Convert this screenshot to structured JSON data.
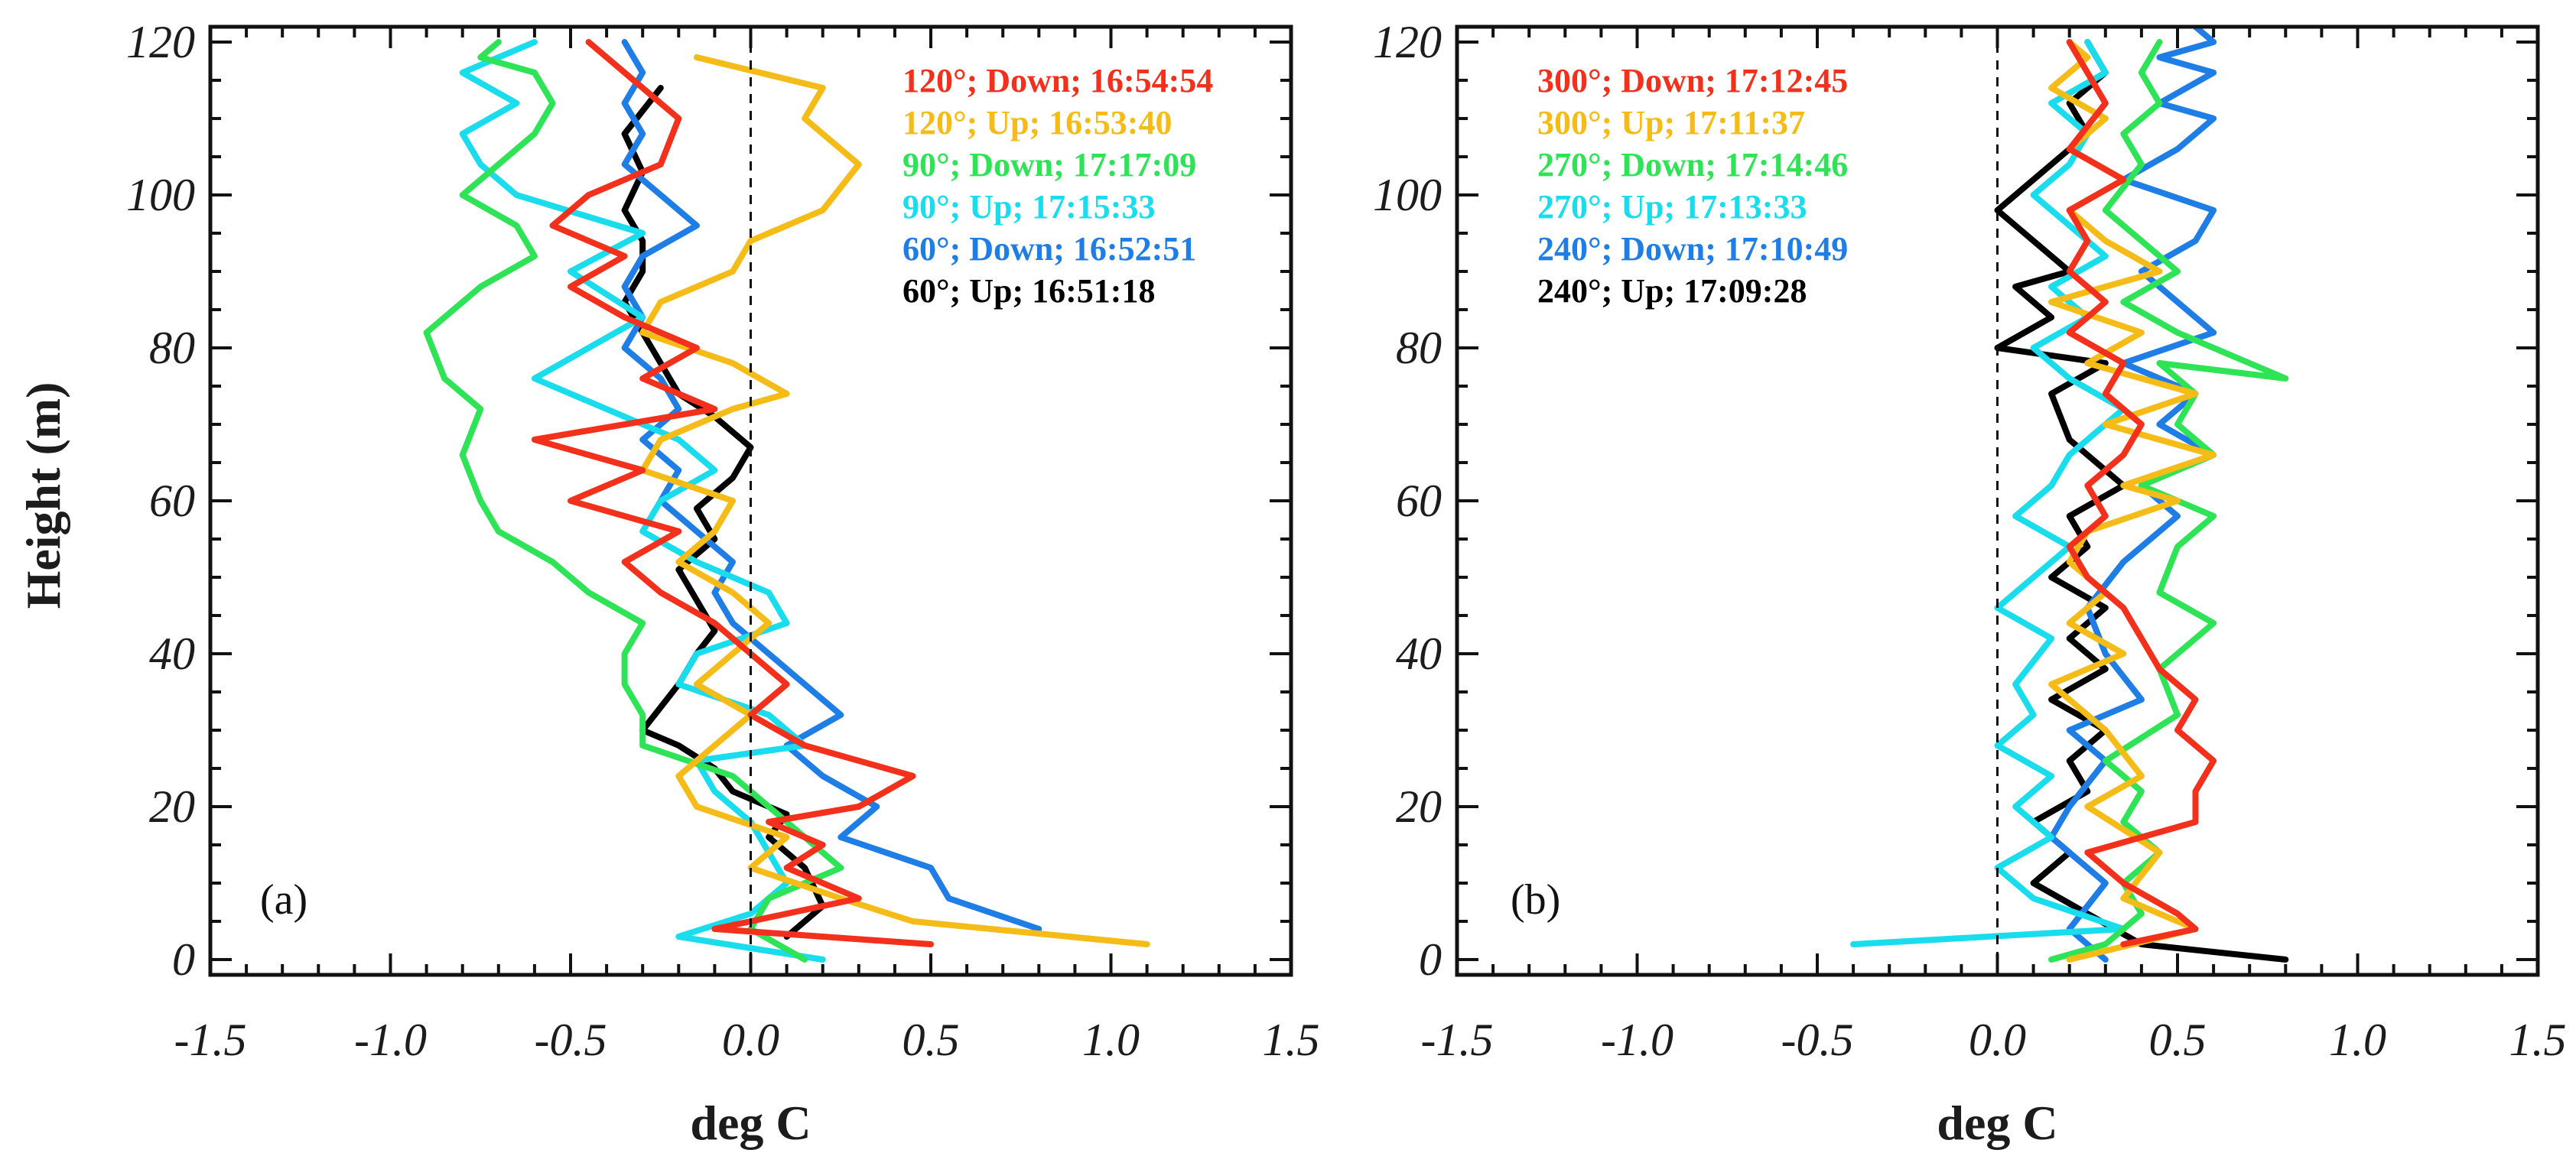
{
  "figure": {
    "ylabel": "Height (m)"
  },
  "chart_data": [
    {
      "type": "line",
      "panel_label": "(a)",
      "xlabel": "deg C",
      "ylabel": "Height (m)",
      "xlim": [
        -1.5,
        1.5
      ],
      "ylim": [
        -2,
        122
      ],
      "xticks": [
        -1.5,
        -1.0,
        -0.5,
        0.0,
        0.5,
        1.0,
        1.5
      ],
      "xtick_labels": [
        "-1.5",
        "-1.0",
        "-0.5",
        "0.0",
        "0.5",
        "1.0",
        "1.5"
      ],
      "yticks": [
        0,
        20,
        40,
        60,
        80,
        100,
        120
      ],
      "ytick_labels": [
        "0",
        "20",
        "40",
        "60",
        "80",
        "100",
        "120"
      ],
      "reference_line_x": 0.0,
      "legend_position": "top-right",
      "series": [
        {
          "name": "60°; Up; 16:51:18",
          "color": "#000000",
          "x": [
            0.1,
            0.2,
            0.15,
            0.05,
            0.1,
            -0.05,
            -0.1,
            -0.2,
            -0.3,
            -0.25,
            -0.2,
            -0.15,
            -0.1,
            -0.15,
            -0.2,
            -0.1,
            -0.15,
            -0.05,
            0.0,
            -0.1,
            -0.2,
            -0.25,
            -0.3,
            -0.35,
            -0.3,
            -0.3,
            -0.35,
            -0.3,
            -0.35,
            -0.25
          ],
          "y": [
            3,
            7,
            12,
            16,
            19,
            22,
            25,
            28,
            30,
            33,
            36,
            40,
            43,
            47,
            51,
            55,
            59,
            63,
            67,
            71,
            74,
            78,
            82,
            86,
            90,
            94,
            98,
            103,
            108,
            114
          ]
        },
        {
          "name": "60°; Down; 16:52:51",
          "color": "#1f7ee6",
          "x": [
            0.8,
            0.55,
            0.5,
            0.25,
            0.35,
            0.2,
            0.1,
            0.25,
            0.15,
            0.05,
            -0.05,
            -0.1,
            -0.05,
            -0.15,
            -0.25,
            -0.2,
            -0.3,
            -0.2,
            -0.25,
            -0.35,
            -0.3,
            -0.35,
            -0.3,
            -0.15,
            -0.25,
            -0.35,
            -0.3,
            -0.35,
            -0.3,
            -0.35
          ],
          "y": [
            4,
            8,
            12,
            16,
            20,
            24,
            28,
            32,
            36,
            40,
            44,
            48,
            52,
            56,
            60,
            64,
            68,
            72,
            76,
            80,
            84,
            88,
            92,
            96,
            100,
            104,
            108,
            112,
            116,
            120
          ]
        },
        {
          "name": "90°; Up; 17:15:33",
          "color": "#19dced",
          "x": [
            0.2,
            -0.2,
            0.0,
            0.1,
            0.05,
            0.0,
            -0.1,
            -0.15,
            0.15,
            0.05,
            -0.2,
            -0.15,
            0.1,
            0.05,
            -0.15,
            -0.3,
            -0.25,
            -0.1,
            -0.2,
            -0.6,
            -0.45,
            -0.3,
            -0.5,
            -0.3,
            -0.65,
            -0.75,
            -0.8,
            -0.65,
            -0.8,
            -0.6
          ],
          "y": [
            0,
            3,
            6,
            10,
            14,
            18,
            22,
            26,
            28,
            32,
            36,
            40,
            44,
            48,
            52,
            56,
            60,
            64,
            68,
            76,
            80,
            84,
            90,
            95,
            100,
            104,
            108,
            112,
            116,
            120
          ]
        },
        {
          "name": "90°; Down; 17:17:09",
          "color": "#2ee356",
          "x": [
            0.15,
            0.0,
            0.05,
            0.25,
            0.15,
            0.05,
            -0.05,
            -0.3,
            -0.3,
            -0.35,
            -0.35,
            -0.3,
            -0.45,
            -0.55,
            -0.7,
            -0.75,
            -0.8,
            -0.75,
            -0.85,
            -0.9,
            -0.75,
            -0.6,
            -0.65,
            -0.8,
            -0.7,
            -0.6,
            -0.55,
            -0.6,
            -0.75,
            -0.7
          ],
          "y": [
            0,
            4,
            8,
            12,
            16,
            20,
            24,
            28,
            32,
            36,
            40,
            44,
            48,
            52,
            56,
            60,
            66,
            72,
            76,
            82,
            88,
            92,
            96,
            100,
            104,
            108,
            112,
            116,
            118,
            120
          ]
        },
        {
          "name": "120°; Up; 16:53:40",
          "color": "#f5bb17",
          "x": [
            1.1,
            0.45,
            0.25,
            0.0,
            0.1,
            -0.15,
            -0.2,
            -0.1,
            0.0,
            -0.15,
            -0.05,
            0.05,
            -0.05,
            -0.2,
            -0.1,
            -0.05,
            -0.3,
            -0.25,
            -0.05,
            0.1,
            -0.05,
            -0.3,
            -0.25,
            -0.05,
            0.0,
            0.2,
            0.3,
            0.15,
            0.2,
            -0.15
          ],
          "y": [
            2,
            5,
            8,
            12,
            16,
            20,
            24,
            28,
            32,
            36,
            40,
            44,
            48,
            52,
            56,
            60,
            64,
            68,
            72,
            74,
            78,
            82,
            86,
            90,
            94,
            98,
            104,
            110,
            114,
            118
          ]
        },
        {
          "name": "120°; Down; 16:54:54",
          "color": "#f2301c",
          "x": [
            0.5,
            -0.1,
            0.3,
            0.1,
            0.2,
            0.05,
            0.3,
            0.45,
            0.15,
            0.0,
            0.1,
            0.0,
            -0.1,
            -0.25,
            -0.35,
            -0.2,
            -0.5,
            -0.3,
            -0.6,
            -0.1,
            -0.3,
            -0.15,
            -0.35,
            -0.5,
            -0.35,
            -0.55,
            -0.45,
            -0.25,
            -0.2,
            -0.45
          ],
          "y": [
            2,
            4,
            8,
            12,
            15,
            18,
            20,
            24,
            28,
            32,
            36,
            40,
            44,
            48,
            52,
            56,
            60,
            64,
            68,
            72,
            76,
            80,
            84,
            88,
            92,
            96,
            100,
            104,
            110,
            120
          ]
        }
      ],
      "legend": [
        {
          "label": "120°; Down; 16:54:54",
          "color": "#f2301c"
        },
        {
          "label": "120°; Up; 16:53:40",
          "color": "#f5bb17"
        },
        {
          "label": "90°; Down; 17:17:09",
          "color": "#2ee356"
        },
        {
          "label": "90°; Up; 17:15:33",
          "color": "#19dced"
        },
        {
          "label": "60°; Down; 16:52:51",
          "color": "#1f7ee6"
        },
        {
          "label": "60°; Up; 16:51:18",
          "color": "#000000"
        }
      ]
    },
    {
      "type": "line",
      "panel_label": "(b)",
      "xlabel": "deg C",
      "ylabel": "",
      "xlim": [
        -1.5,
        1.5
      ],
      "ylim": [
        -2,
        122
      ],
      "xticks": [
        -1.5,
        -1.0,
        -0.5,
        0.0,
        0.5,
        1.0,
        1.5
      ],
      "xtick_labels": [
        "-1.5",
        "-1.0",
        "-0.5",
        "0.0",
        "0.5",
        "1.0",
        "1.5"
      ],
      "yticks": [
        0,
        20,
        40,
        60,
        80,
        100,
        120
      ],
      "ytick_labels": [
        "0",
        "20",
        "40",
        "60",
        "80",
        "100",
        "120"
      ],
      "reference_line_x": 0.0,
      "legend_position": "top-left",
      "series": [
        {
          "name": "240°; Up; 17:09:28",
          "color": "#000000",
          "x": [
            0.8,
            0.4,
            0.1,
            0.2,
            0.1,
            0.25,
            0.2,
            0.3,
            0.15,
            0.3,
            0.2,
            0.3,
            0.15,
            0.25,
            0.2,
            0.35,
            0.2,
            0.15,
            0.3,
            0.0,
            0.15,
            0.05,
            0.2,
            0.1,
            0.0,
            0.15,
            0.25,
            0.2,
            0.3,
            0.25
          ],
          "y": [
            0,
            2,
            10,
            14,
            18,
            22,
            26,
            30,
            34,
            38,
            42,
            46,
            50,
            54,
            58,
            62,
            68,
            74,
            78,
            80,
            84,
            88,
            90,
            94,
            98,
            104,
            108,
            112,
            116,
            120
          ]
        },
        {
          "name": "240°; Down; 17:10:49",
          "color": "#1f7ee6",
          "x": [
            0.3,
            0.2,
            0.3,
            0.15,
            0.2,
            0.3,
            0.2,
            0.4,
            0.3,
            0.25,
            0.35,
            0.5,
            0.4,
            0.6,
            0.45,
            0.55,
            0.35,
            0.6,
            0.5,
            0.4,
            0.55,
            0.6,
            0.35,
            0.5,
            0.6,
            0.45,
            0.6,
            0.45,
            0.6,
            0.55
          ],
          "y": [
            0,
            4,
            10,
            16,
            20,
            26,
            30,
            34,
            40,
            46,
            52,
            58,
            62,
            66,
            70,
            74,
            78,
            82,
            86,
            90,
            94,
            98,
            102,
            106,
            110,
            112,
            116,
            118,
            120,
            122
          ]
        },
        {
          "name": "270°; Up; 17:13:33",
          "color": "#19dced",
          "x": [
            -0.4,
            0.35,
            0.1,
            0.0,
            0.15,
            0.05,
            0.15,
            0.0,
            0.1,
            0.05,
            0.15,
            0.0,
            0.1,
            0.2,
            0.05,
            0.15,
            0.2,
            0.35,
            0.2,
            0.1,
            0.25,
            0.15,
            0.3,
            0.2,
            0.1,
            0.2,
            0.25,
            0.15,
            0.3,
            0.25
          ],
          "y": [
            2,
            4,
            8,
            12,
            16,
            20,
            24,
            28,
            32,
            36,
            42,
            46,
            50,
            54,
            58,
            62,
            66,
            72,
            76,
            80,
            84,
            88,
            92,
            96,
            100,
            104,
            108,
            112,
            116,
            120
          ]
        },
        {
          "name": "270°; Down; 17:14:46",
          "color": "#2ee356",
          "x": [
            0.15,
            0.3,
            0.4,
            0.35,
            0.45,
            0.35,
            0.4,
            0.3,
            0.5,
            0.45,
            0.6,
            0.45,
            0.5,
            0.6,
            0.4,
            0.6,
            0.5,
            0.55,
            0.45,
            0.8,
            0.5,
            0.35,
            0.5,
            0.4,
            0.3,
            0.4,
            0.35,
            0.45,
            0.4,
            0.45
          ],
          "y": [
            0,
            2,
            6,
            10,
            14,
            18,
            22,
            26,
            32,
            38,
            44,
            48,
            54,
            58,
            62,
            66,
            70,
            74,
            78,
            76,
            82,
            86,
            90,
            94,
            98,
            104,
            108,
            112,
            116,
            120
          ]
        },
        {
          "name": "300°; Up; 17:11:37",
          "color": "#f5bb17",
          "x": [
            0.2,
            0.55,
            0.35,
            0.45,
            0.25,
            0.4,
            0.3,
            0.15,
            0.35,
            0.2,
            0.3,
            0.2,
            0.25,
            0.5,
            0.35,
            0.6,
            0.3,
            0.55,
            0.25,
            0.4,
            0.15,
            0.45,
            0.3,
            0.2,
            0.35,
            0.2,
            0.3,
            0.15,
            0.25,
            0.2
          ],
          "y": [
            0,
            4,
            8,
            14,
            20,
            24,
            30,
            36,
            40,
            44,
            48,
            52,
            56,
            60,
            62,
            66,
            70,
            74,
            78,
            82,
            86,
            90,
            94,
            98,
            102,
            106,
            110,
            114,
            118,
            120
          ]
        },
        {
          "name": "300°; Down; 17:12:45",
          "color": "#f2301c",
          "x": [
            0.35,
            0.55,
            0.5,
            0.35,
            0.25,
            0.55,
            0.55,
            0.6,
            0.5,
            0.55,
            0.45,
            0.4,
            0.35,
            0.25,
            0.2,
            0.3,
            0.25,
            0.35,
            0.4,
            0.3,
            0.35,
            0.2,
            0.3,
            0.2,
            0.25,
            0.2,
            0.35,
            0.2,
            0.3,
            0.2
          ],
          "y": [
            2,
            4,
            6,
            10,
            14,
            18,
            22,
            26,
            30,
            34,
            38,
            42,
            46,
            50,
            54,
            58,
            62,
            66,
            70,
            74,
            78,
            82,
            86,
            90,
            94,
            98,
            102,
            106,
            112,
            120
          ]
        }
      ],
      "legend": [
        {
          "label": "300°; Down; 17:12:45",
          "color": "#f2301c"
        },
        {
          "label": "300°; Up; 17:11:37",
          "color": "#f5bb17"
        },
        {
          "label": "270°; Down; 17:14:46",
          "color": "#2ee356"
        },
        {
          "label": "270°; Up; 17:13:33",
          "color": "#19dced"
        },
        {
          "label": "240°; Down; 17:10:49",
          "color": "#1f7ee6"
        },
        {
          "label": "240°; Up; 17:09:28",
          "color": "#000000"
        }
      ]
    }
  ]
}
